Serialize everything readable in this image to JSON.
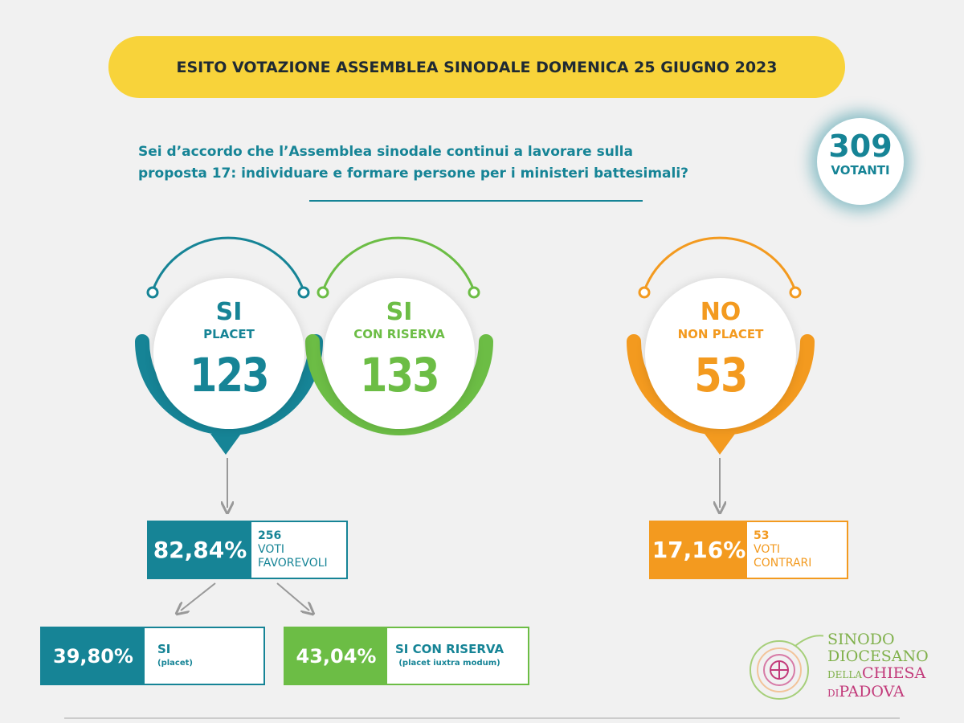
{
  "banner": {
    "title": "ESITO VOTAZIONE ASSEMBLEA SINODALE DOMENICA 25 GIUGNO 2023"
  },
  "question": {
    "line1": "Sei d’accordo che l’Assemblea sinodale continui a lavorare sulla",
    "line2": "proposta 17: individuare e formare persone per i ministeri battesimali?"
  },
  "voters": {
    "count": "309",
    "label": "VOTANTI"
  },
  "options": [
    {
      "title": "SI",
      "subtitle": "PLACET",
      "count": "123"
    },
    {
      "title": "SI",
      "subtitle": "CON RISERVA",
      "count": "133"
    },
    {
      "title": "NO",
      "subtitle": "NON PLACET",
      "count": "53"
    }
  ],
  "favorevoli": {
    "percent": "82,84%",
    "count": "256",
    "label1": "VOTI",
    "label2": "FAVOREVOLI"
  },
  "contrari": {
    "percent": "17,16%",
    "count": "53",
    "label1": "VOTI",
    "label2": "CONTRARI"
  },
  "breakdown": [
    {
      "percent": "39,80%",
      "label": "SI",
      "sub": "(placet)"
    },
    {
      "percent": "43,04%",
      "label": "SI CON RISERVA",
      "sub": "(placet iuxtra modum)"
    }
  ],
  "logo": {
    "line1": "SINODO",
    "line2": "DIOCESANO",
    "line3a": "DELLA",
    "line3b": "CHIESA",
    "line4a": "DI",
    "line4b": "PADOVA"
  },
  "colors": {
    "teal": "#168496",
    "green": "#6cbd45",
    "orange": "#f39a1f",
    "yellow": "#f8d33a"
  }
}
